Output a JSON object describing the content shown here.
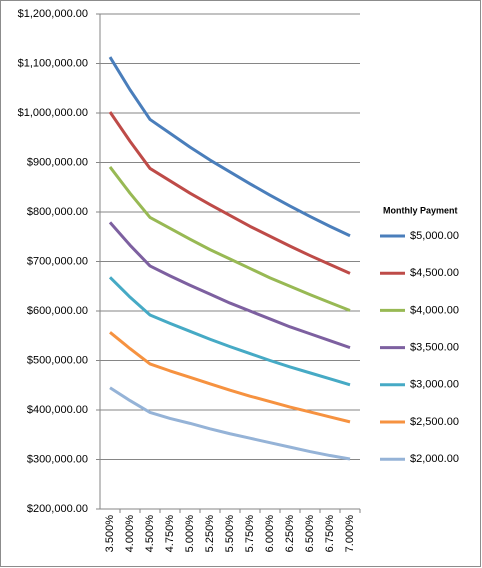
{
  "chart_data": {
    "type": "line",
    "categories": [
      "3.500%",
      "4.000%",
      "4.500%",
      "4.750%",
      "5.000%",
      "5.250%",
      "5.500%",
      "5.750%",
      "6.000%",
      "6.250%",
      "6.500%",
      "6.750%",
      "7.000%"
    ],
    "series": [
      {
        "name": "$5,000.00",
        "color": "#4a7ebb",
        "values": [
          1113000,
          1047000,
          987000,
          959000,
          931000,
          905000,
          881000,
          857000,
          834000,
          812000,
          791000,
          771000,
          752000
        ]
      },
      {
        "name": "$4,500.00",
        "color": "#be4b48",
        "values": [
          1002000,
          943000,
          888000,
          863000,
          838000,
          815000,
          793000,
          771000,
          751000,
          731000,
          712000,
          694000,
          676000
        ]
      },
      {
        "name": "$4,000.00",
        "color": "#98b954",
        "values": [
          891000,
          838000,
          789000,
          767000,
          745000,
          724000,
          705000,
          686000,
          667000,
          650000,
          633000,
          617000,
          601000
        ]
      },
      {
        "name": "$3,500.00",
        "color": "#7d60a0",
        "values": [
          779000,
          733000,
          691000,
          671000,
          652000,
          634000,
          616000,
          600000,
          584000,
          568000,
          554000,
          540000,
          526000
        ]
      },
      {
        "name": "$3,000.00",
        "color": "#46aac5",
        "values": [
          668000,
          628000,
          592000,
          575000,
          559000,
          543000,
          528000,
          514000,
          500000,
          487000,
          475000,
          463000,
          451000
        ]
      },
      {
        "name": "$2,500.00",
        "color": "#f69240",
        "values": [
          557000,
          524000,
          493000,
          479000,
          466000,
          453000,
          440000,
          428000,
          417000,
          406000,
          396000,
          386000,
          376000
        ]
      },
      {
        "name": "$2,000.00",
        "color": "#95b3d7",
        "values": [
          445000,
          419000,
          395000,
          383000,
          373000,
          362000,
          352000,
          343000,
          334000,
          325000,
          316000,
          308000,
          301000
        ]
      }
    ],
    "legend_title": "Monthly Payment",
    "legend_position": "right",
    "grid": true,
    "ylim": [
      200000,
      1200000
    ],
    "yticks": [
      {
        "value": 200000,
        "label": "$200,000.00"
      },
      {
        "value": 300000,
        "label": "$300,000.00"
      },
      {
        "value": 400000,
        "label": "$400,000.00"
      },
      {
        "value": 500000,
        "label": "$500,000.00"
      },
      {
        "value": 600000,
        "label": "$600,000.00"
      },
      {
        "value": 700000,
        "label": "$700,000.00"
      },
      {
        "value": 800000,
        "label": "$800,000.00"
      },
      {
        "value": 900000,
        "label": "$900,000.00"
      },
      {
        "value": 1000000,
        "label": "$1,000,000.00"
      },
      {
        "value": 1100000,
        "label": "$1,100,000.00"
      },
      {
        "value": 1200000,
        "label": "$1,200,000.00"
      }
    ]
  }
}
